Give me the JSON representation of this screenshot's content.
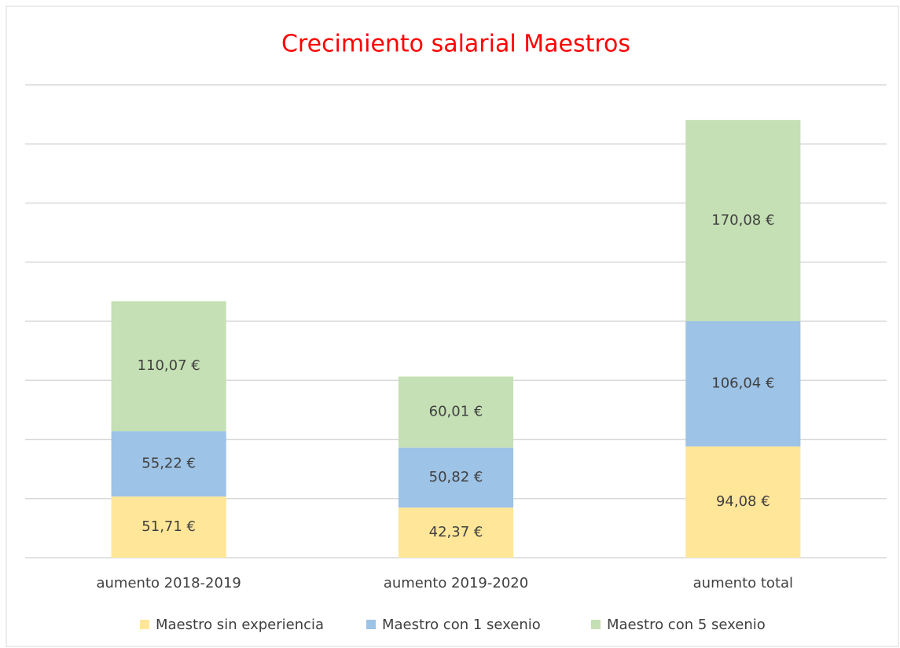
{
  "chart_data": {
    "type": "stacked_bar",
    "title": "Crecimiento salarial Maestros",
    "categories": [
      "aumento 2018-2019",
      "aumento 2019-2020",
      "aumento total"
    ],
    "series": [
      {
        "name": "Maestro sin experiencia",
        "color": "#ffe699",
        "values": [
          51.71,
          42.37,
          94.08
        ],
        "value_labels": [
          "51,71 €",
          "42,37 €",
          "94,08 €"
        ]
      },
      {
        "name": "Maestro con 1 sexenio",
        "color": "#9dc3e6",
        "values": [
          55.22,
          50.82,
          106.04
        ],
        "value_labels": [
          "55,22 €",
          "50,82 €",
          "106,04 €"
        ]
      },
      {
        "name": "Maestro con 5 sexenio",
        "color": "#c5e0b4",
        "values": [
          110.07,
          60.01,
          170.08
        ],
        "value_labels": [
          "110,07 €",
          "60,01 €",
          "170,08 €"
        ]
      }
    ],
    "ylim": [
      0,
      400
    ],
    "yticks": [
      0,
      50,
      100,
      150,
      200,
      250,
      300,
      350,
      400
    ],
    "grid": true,
    "legend": "bottom"
  }
}
